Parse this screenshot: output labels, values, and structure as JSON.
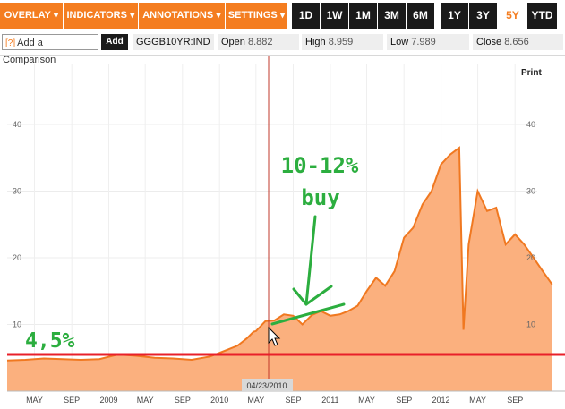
{
  "toolbar": {
    "menus": [
      "OVERLAY ▾",
      "INDICATORS ▾",
      "ANNOTATIONS ▾",
      "SETTINGS ▾"
    ],
    "ranges": [
      "1D",
      "1W",
      "1M",
      "3M",
      "6M",
      "1Y",
      "3Y",
      "5Y",
      "YTD"
    ],
    "active_range": "5Y"
  },
  "compare": {
    "help": "[?]",
    "label": "Add a Comparison",
    "add": "Add"
  },
  "ticker": "GGGB10YR:IND",
  "stats": {
    "open_label": "Open",
    "open": "8.882",
    "high_label": "High",
    "high": "8.959",
    "low_label": "Low",
    "low": "7.989",
    "close_label": "Close",
    "close": "8.656"
  },
  "print_label": "Print",
  "crosshair_date": "04/23/2010",
  "annotations": {
    "left_level": "4,5%",
    "buy_line1": "10-12%",
    "buy_line2": "buy"
  },
  "colors": {
    "accent": "#f47d20",
    "area": "#fbb07e",
    "line": "#f07820",
    "marker": "#e8202a",
    "annotation": "#2cae3f"
  },
  "chart_data": {
    "type": "area",
    "y_ticks": [
      "40",
      "30",
      "20",
      "10"
    ],
    "ylim": [
      0,
      45
    ],
    "x_ticks": [
      "MAY",
      "SEP",
      "2009",
      "MAY",
      "SEP",
      "2010",
      "MAY",
      "SEP",
      "2011",
      "MAY",
      "SEP",
      "2012",
      "MAY",
      "SEP"
    ],
    "grid": true,
    "series": [
      {
        "x": [
          "2008-02",
          "2008-04",
          "2008-06",
          "2008-08",
          "2008-10",
          "2008-12",
          "2009-02",
          "2009-04",
          "2009-06",
          "2009-08",
          "2009-10",
          "2009-12",
          "2010-02",
          "2010-03",
          "2010-04",
          "2010-04-23",
          "2010-05",
          "2010-06",
          "2010-07",
          "2010-08",
          "2010-09",
          "2010-10",
          "2010-11",
          "2010-12",
          "2011-01",
          "2011-02",
          "2011-03",
          "2011-04",
          "2011-05",
          "2011-06",
          "2011-07",
          "2011-08",
          "2011-09",
          "2011-10",
          "2011-11",
          "2011-12",
          "2012-01",
          "2012-02",
          "2012-03",
          "2012-03-15",
          "2012-04",
          "2012-05",
          "2012-06",
          "2012-07",
          "2012-08",
          "2012-09",
          "2012-10",
          "2012-11",
          "2012-12",
          "2013-01"
        ],
        "values": [
          4.6,
          4.7,
          4.9,
          4.8,
          4.7,
          4.8,
          5.5,
          5.3,
          5.0,
          4.9,
          4.7,
          5.2,
          6.3,
          6.8,
          7.9,
          8.9,
          9.0,
          10.5,
          10.6,
          11.5,
          11.3,
          10.0,
          11.4,
          12.0,
          11.3,
          11.5,
          12.0,
          12.8,
          15.0,
          17.0,
          15.8,
          18.0,
          23.0,
          24.5,
          28.0,
          30.0,
          34.0,
          35.5,
          36.5,
          9.2,
          22.0,
          30.0,
          27.0,
          27.5,
          22.0,
          23.5,
          22.0,
          20.0,
          18.0,
          16.0
        ]
      }
    ]
  }
}
